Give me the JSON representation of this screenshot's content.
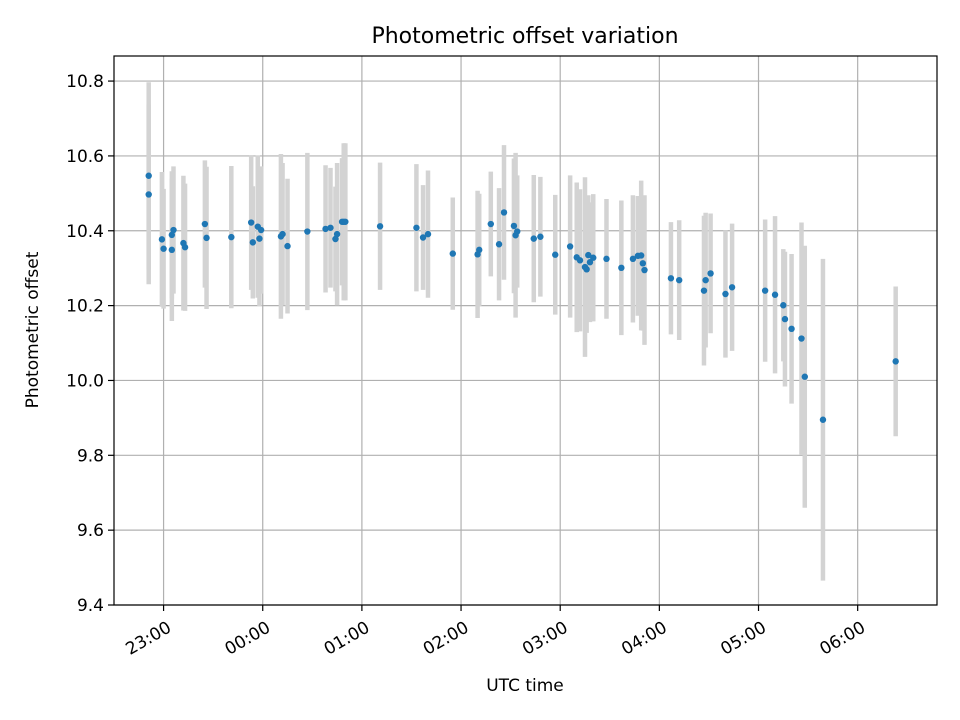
{
  "chart_data": {
    "type": "scatter",
    "title": "Photometric offset variation",
    "xlabel": "UTC time",
    "ylabel": "Photometric offset",
    "ylim": [
      9.4,
      10.867
    ],
    "xlim": [
      "22:30",
      "06:48"
    ],
    "yticks": [
      "9.4",
      "9.6",
      "9.8",
      "10.0",
      "10.2",
      "10.4",
      "10.6",
      "10.8"
    ],
    "xticks": [
      "23:00",
      "00:00",
      "01:00",
      "02:00",
      "03:00",
      "04:00",
      "05:00",
      "06:00"
    ],
    "grid": true,
    "colors": {
      "point": "#1f77b4",
      "errorbar": "#d3d3d3",
      "grid": "#b0b0b0",
      "axes": "#000000"
    },
    "series": [
      {
        "x": [
          "22:51",
          "22:51",
          "22:59",
          "23:00",
          "23:05",
          "23:05",
          "23:06",
          "23:12",
          "23:13",
          "23:25",
          "23:26",
          "23:41",
          "23:53",
          "23:54",
          "23:57",
          "23:58",
          "23:59",
          "00:11",
          "00:12",
          "00:15",
          "00:27",
          "00:38",
          "00:41",
          "00:44",
          "00:45",
          "00:48",
          "00:49",
          "00:50",
          "01:11",
          "01:33",
          "01:37",
          "01:40",
          "01:55",
          "02:10",
          "02:11",
          "02:18",
          "02:23",
          "02:26",
          "02:32",
          "02:33",
          "02:34",
          "02:44",
          "02:48",
          "02:57",
          "03:06",
          "03:10",
          "03:12",
          "03:15",
          "03:16",
          "03:17",
          "03:18",
          "03:20",
          "03:28",
          "03:37",
          "03:44",
          "03:47",
          "03:49",
          "03:50",
          "03:51",
          "04:07",
          "04:12",
          "04:27",
          "04:28",
          "04:31",
          "04:40",
          "04:44",
          "05:04",
          "05:10",
          "05:15",
          "05:16",
          "05:20",
          "05:26",
          "05:28",
          "05:39",
          "06:23"
        ],
        "y": [
          10.547,
          10.497,
          10.377,
          10.352,
          10.389,
          10.349,
          10.402,
          10.367,
          10.356,
          10.418,
          10.381,
          10.383,
          10.422,
          10.369,
          10.411,
          10.379,
          10.402,
          10.385,
          10.391,
          10.359,
          10.398,
          10.405,
          10.408,
          10.378,
          10.391,
          10.424,
          10.424,
          10.424,
          10.412,
          10.408,
          10.382,
          10.391,
          10.339,
          10.337,
          10.349,
          10.418,
          10.364,
          10.449,
          10.413,
          10.388,
          10.398,
          10.379,
          10.384,
          10.336,
          10.358,
          10.329,
          10.321,
          10.303,
          10.297,
          10.335,
          10.316,
          10.328,
          10.325,
          10.301,
          10.325,
          10.333,
          10.334,
          10.313,
          10.295,
          10.273,
          10.268,
          10.24,
          10.268,
          10.286,
          10.231,
          10.249,
          10.24,
          10.229,
          10.201,
          10.164,
          10.138,
          10.112,
          10.01,
          9.895,
          10.051
        ],
        "err": [
          0.25,
          0.24,
          0.18,
          0.16,
          0.17,
          0.19,
          0.17,
          0.18,
          0.17,
          0.17,
          0.19,
          0.19,
          0.18,
          0.15,
          0.19,
          0.18,
          0.17,
          0.22,
          0.19,
          0.18,
          0.21,
          0.17,
          0.16,
          0.14,
          0.19,
          0.17,
          0.21,
          0.21,
          0.17,
          0.17,
          0.14,
          0.17,
          0.15,
          0.17,
          0.15,
          0.14,
          0.15,
          0.18,
          0.18,
          0.22,
          0.15,
          0.17,
          0.16,
          0.16,
          0.19,
          0.2,
          0.19,
          0.24,
          0.17,
          0.16,
          0.16,
          0.17,
          0.16,
          0.18,
          0.17,
          0.16,
          0.2,
          0.18,
          0.2,
          0.15,
          0.16,
          0.2,
          0.18,
          0.16,
          0.17,
          0.17,
          0.19,
          0.21,
          0.15,
          0.18,
          0.2,
          0.31,
          0.35,
          0.43,
          0.2
        ]
      }
    ]
  }
}
